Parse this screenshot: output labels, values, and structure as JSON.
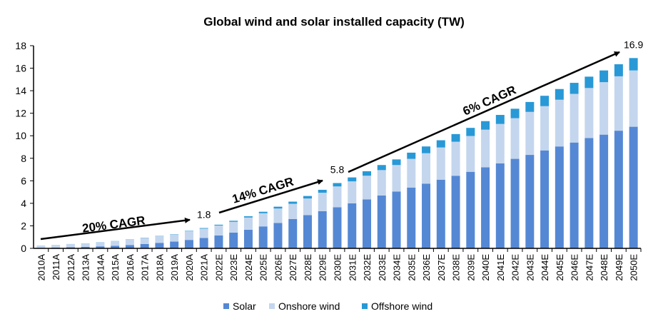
{
  "chart_data": {
    "type": "bar",
    "stacked": true,
    "title": "Global wind and solar installed capacity (TW)",
    "xlabel": "",
    "ylabel": "",
    "ylim": [
      0,
      18
    ],
    "yticks": [
      0,
      2,
      4,
      6,
      8,
      10,
      12,
      14,
      16,
      18
    ],
    "grid": false,
    "legend_position": "bottom",
    "categories": [
      "2010A",
      "2011A",
      "2012A",
      "2013A",
      "2014A",
      "2015A",
      "2016A",
      "2017A",
      "2018A",
      "2019A",
      "2020A",
      "2021A",
      "2022E",
      "2023E",
      "2024E",
      "2025E",
      "2026E",
      "2027E",
      "2028E",
      "2029E",
      "2030E",
      "2031E",
      "2032E",
      "2033E",
      "2034E",
      "2035E",
      "2036E",
      "2037E",
      "2038E",
      "2039E",
      "2040E",
      "2041E",
      "2042E",
      "2043E",
      "2044E",
      "2045E",
      "2046E",
      "2047E",
      "2048E",
      "2049E",
      "2050E"
    ],
    "series": [
      {
        "name": "Solar",
        "color": "#5588d4",
        "values": [
          0.04,
          0.07,
          0.1,
          0.14,
          0.18,
          0.23,
          0.3,
          0.39,
          0.49,
          0.6,
          0.75,
          0.92,
          1.15,
          1.4,
          1.65,
          1.95,
          2.25,
          2.6,
          2.95,
          3.3,
          3.65,
          4.0,
          4.35,
          4.7,
          5.05,
          5.4,
          5.75,
          6.1,
          6.45,
          6.8,
          7.2,
          7.55,
          7.95,
          8.3,
          8.7,
          9.05,
          9.4,
          9.8,
          10.1,
          10.45,
          10.8
        ]
      },
      {
        "name": "Onshore wind",
        "color": "#c4d6ee",
        "values": [
          0.21,
          0.23,
          0.28,
          0.3,
          0.36,
          0.41,
          0.49,
          0.54,
          0.59,
          0.62,
          0.77,
          0.83,
          0.88,
          0.96,
          1.09,
          1.17,
          1.29,
          1.36,
          1.48,
          1.64,
          1.85,
          1.95,
          2.1,
          2.25,
          2.35,
          2.55,
          2.7,
          2.86,
          3.02,
          3.18,
          3.34,
          3.5,
          3.61,
          3.82,
          3.93,
          4.15,
          4.32,
          4.44,
          4.66,
          4.83,
          5.0
        ]
      },
      {
        "name": "Offshore wind",
        "color": "#2899d6",
        "values": [
          0.003,
          0.004,
          0.005,
          0.007,
          0.009,
          0.012,
          0.014,
          0.019,
          0.023,
          0.029,
          0.035,
          0.055,
          0.07,
          0.09,
          0.11,
          0.13,
          0.16,
          0.19,
          0.22,
          0.26,
          0.3,
          0.35,
          0.4,
          0.45,
          0.5,
          0.55,
          0.6,
          0.64,
          0.68,
          0.72,
          0.76,
          0.8,
          0.84,
          0.88,
          0.92,
          0.95,
          0.98,
          1.01,
          1.04,
          1.07,
          1.1
        ]
      }
    ],
    "annotations": [
      {
        "text": "20% CAGR",
        "from": "2010A",
        "to": "2021A"
      },
      {
        "text": "14% CAGR",
        "from": "2021A",
        "to": "2030E"
      },
      {
        "text": "6% CAGR",
        "from": "2030E",
        "to": "2050E"
      }
    ],
    "value_labels": [
      {
        "category": "2021A",
        "text": "1.8"
      },
      {
        "category": "2030E",
        "text": "5.8"
      },
      {
        "category": "2050E",
        "text": "16.9"
      }
    ]
  }
}
